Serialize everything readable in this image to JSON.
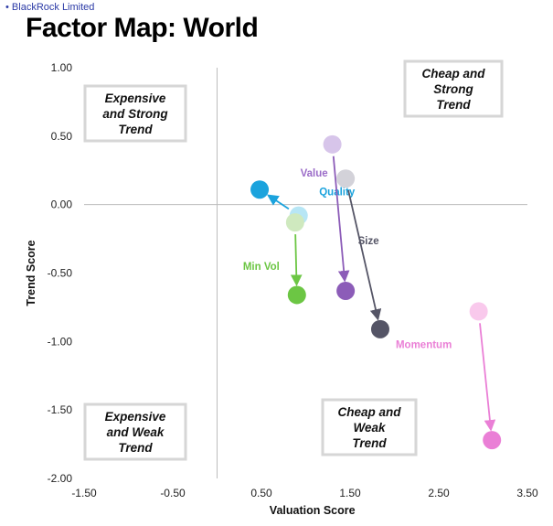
{
  "source_label": "BlackRock Limited",
  "title": "Factor Map: World",
  "chart_data": {
    "type": "scatter",
    "xlabel": "Valuation Score",
    "ylabel": "Trend Score",
    "xlim": [
      -1.5,
      3.5
    ],
    "ylim": [
      -2.0,
      1.0
    ],
    "xticks": [
      -1.5,
      -0.5,
      0.5,
      1.5,
      2.5,
      3.5
    ],
    "xtick_labels": [
      "-1.50",
      "-0.50",
      "0.50",
      "1.50",
      "2.50",
      "3.50"
    ],
    "yticks": [
      1.0,
      0.5,
      0.0,
      -0.5,
      -1.0,
      -1.5,
      -2.0
    ],
    "ytick_labels": [
      "1.00",
      "0.50",
      "0.00",
      "-0.50",
      "-1.00",
      "-1.50",
      "-2.00"
    ],
    "grid": false,
    "quadrant_labels": [
      {
        "lines": [
          "Expensive",
          "and Strong",
          "Trend"
        ]
      },
      {
        "lines": [
          "Cheap and",
          "Strong",
          "Trend"
        ]
      },
      {
        "lines": [
          "Expensive",
          "and Weak",
          "Trend"
        ]
      },
      {
        "lines": [
          "Cheap and",
          "Weak",
          "Trend"
        ]
      }
    ],
    "series": [
      {
        "name": "Quality",
        "from": [
          0.92,
          -0.08
        ],
        "to": [
          0.48,
          0.11
        ],
        "color_from": "#b7e6f5",
        "color_to": "#1ba3dd",
        "label_color": "#1ba3dd"
      },
      {
        "name": "Min Vol",
        "from": [
          0.88,
          -0.13
        ],
        "to": [
          0.9,
          -0.66
        ],
        "color_from": "#cfe9bf",
        "color_to": "#6cc644",
        "label_color": "#6cc644"
      },
      {
        "name": "Value",
        "from": [
          1.3,
          0.44
        ],
        "to": [
          1.45,
          -0.63
        ],
        "color_from": "#d7c5ea",
        "color_to": "#8c5cb8",
        "label_color": "#9b6cc8"
      },
      {
        "name": "Size",
        "from": [
          1.45,
          0.19
        ],
        "to": [
          1.84,
          -0.91
        ],
        "color_from": "#d3d2d9",
        "color_to": "#555566",
        "label_color": "#555566"
      },
      {
        "name": "Momentum",
        "from": [
          2.95,
          -0.78
        ],
        "to": [
          3.1,
          -1.72
        ],
        "color_from": "#f9c9ec",
        "color_to": "#ea7fd6",
        "label_color": "#ea7fd6"
      }
    ]
  }
}
